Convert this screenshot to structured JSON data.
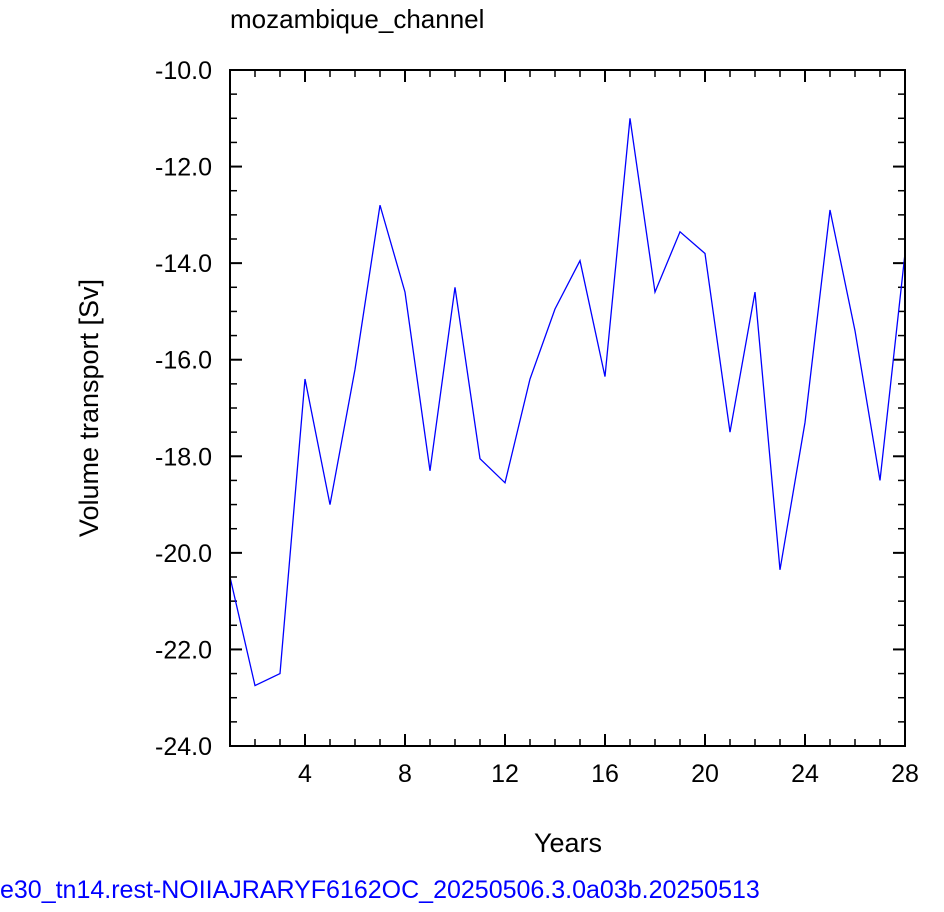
{
  "chart_data": {
    "type": "line",
    "title": "mozambique_channel",
    "xlabel": "Years",
    "ylabel": "Volume transport [Sv]",
    "xlim": [
      1,
      28
    ],
    "ylim": [
      -24,
      -10
    ],
    "x_ticks": [
      4,
      8,
      12,
      16,
      20,
      24,
      28
    ],
    "y_ticks": [
      -24.0,
      -22.0,
      -20.0,
      -18.0,
      -16.0,
      -14.0,
      -12.0,
      -10.0
    ],
    "y_tick_labels": [
      "-24.0",
      "-22.0",
      "-20.0",
      "-18.0",
      "-16.0",
      "-14.0",
      "-12.0",
      "-10.0"
    ],
    "grid": false,
    "series": [
      {
        "color": "#0000ff",
        "x": [
          1,
          2,
          3,
          4,
          5,
          6,
          7,
          8,
          9,
          10,
          11,
          12,
          13,
          14,
          15,
          16,
          17,
          18,
          19,
          20,
          21,
          22,
          23,
          24,
          25,
          26,
          27,
          28
        ],
        "values": [
          -20.5,
          -22.75,
          -22.5,
          -16.4,
          -19.0,
          -16.2,
          -12.8,
          -14.6,
          -18.3,
          -14.5,
          -18.05,
          -18.55,
          -16.4,
          -14.95,
          -13.95,
          -16.35,
          -11.0,
          -14.6,
          -13.35,
          -13.8,
          -17.5,
          -14.6,
          -20.35,
          -17.3,
          -12.9,
          -15.4,
          -18.5,
          -13.8
        ]
      }
    ]
  },
  "footer": {
    "text": "e30_tn14.rest-NOIIAJRARYF6162OC_20250506.3.0a03b.20250513"
  }
}
